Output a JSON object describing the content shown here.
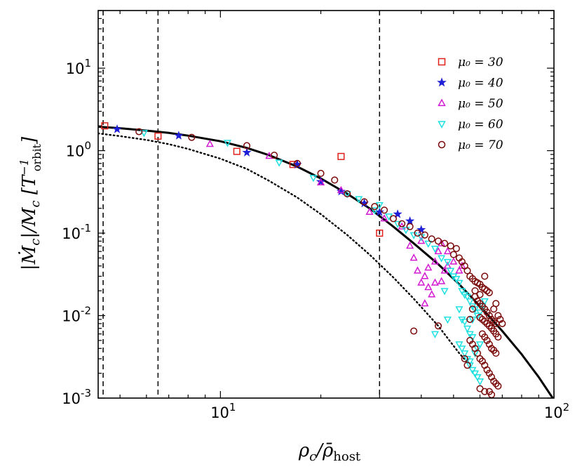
{
  "chart_data": {
    "type": "scatter",
    "x_scale": "log",
    "y_scale": "log",
    "xlim": [
      4.3,
      100
    ],
    "ylim": [
      0.001,
      50
    ],
    "xlabel": "ρ_c / ρ̄_host",
    "ylabel": "|Ṁ_c| / M_c [T⁻¹_orbit]",
    "x_ticks": [
      {
        "value": 10,
        "base": "10",
        "exp": "1"
      },
      {
        "value": 100,
        "base": "10",
        "exp": "2"
      }
    ],
    "y_ticks": [
      {
        "value": 0.001,
        "base": "10",
        "exp": "-3"
      },
      {
        "value": 0.01,
        "base": "10",
        "exp": "-2"
      },
      {
        "value": 0.1,
        "base": "10",
        "exp": "-1"
      },
      {
        "value": 1,
        "base": "10",
        "exp": "0"
      },
      {
        "value": 10,
        "base": "10",
        "exp": "1"
      }
    ],
    "grid": false,
    "legend_position": "top-right",
    "vertical_lines": [
      4.45,
      6.5,
      30
    ],
    "curves": [
      {
        "style": "solid",
        "x": [
          4.3,
          5,
          6,
          7,
          8,
          10,
          12,
          14,
          17,
          20,
          24,
          28,
          33,
          38,
          45,
          52,
          60,
          70,
          80,
          90,
          100
        ],
        "y": [
          1.95,
          1.87,
          1.75,
          1.64,
          1.52,
          1.3,
          1.08,
          0.88,
          0.64,
          0.46,
          0.3,
          0.2,
          0.12,
          0.075,
          0.042,
          0.024,
          0.013,
          0.0065,
          0.0034,
          0.0018,
          0.00095
        ]
      },
      {
        "style": "dotted",
        "x": [
          4.3,
          5,
          6,
          7,
          8,
          10,
          12,
          14,
          17,
          20,
          24,
          28,
          33,
          38,
          45,
          52,
          55
        ],
        "y": [
          1.62,
          1.5,
          1.35,
          1.2,
          1.05,
          0.8,
          0.6,
          0.43,
          0.27,
          0.17,
          0.095,
          0.055,
          0.029,
          0.016,
          0.0075,
          0.0035,
          0.0027
        ]
      }
    ],
    "series": [
      {
        "name": "μ₀ = 30",
        "marker": "square",
        "color": "#e0201a",
        "points": [
          [
            4.5,
            2.0
          ],
          [
            6.5,
            1.5
          ],
          [
            11.2,
            0.98
          ],
          [
            16.5,
            0.68
          ],
          [
            23,
            0.85
          ],
          [
            30,
            0.1
          ]
        ]
      },
      {
        "name": "μ₀ = 40",
        "marker": "star",
        "color": "#1f1fd6",
        "points": [
          [
            4.9,
            1.82
          ],
          [
            7.5,
            1.52
          ],
          [
            12,
            0.95
          ],
          [
            17,
            0.68
          ],
          [
            20,
            0.42
          ],
          [
            23,
            0.32
          ],
          [
            27,
            0.23
          ],
          [
            30,
            0.18
          ],
          [
            34,
            0.17
          ],
          [
            37,
            0.14
          ],
          [
            40,
            0.11
          ]
        ]
      },
      {
        "name": "μ₀ = 50",
        "marker": "triangle-up",
        "color": "#d21ad2",
        "points": [
          [
            9.3,
            1.2
          ],
          [
            14,
            0.86
          ],
          [
            20,
            0.41
          ],
          [
            23,
            0.33
          ],
          [
            28,
            0.18
          ],
          [
            31,
            0.15
          ],
          [
            35,
            0.12
          ],
          [
            37,
            0.07
          ],
          [
            38,
            0.05
          ],
          [
            39,
            0.035
          ],
          [
            40,
            0.025
          ],
          [
            41,
            0.03
          ],
          [
            42,
            0.022
          ],
          [
            43,
            0.018
          ],
          [
            41,
            0.014
          ],
          [
            44,
            0.025
          ],
          [
            46,
            0.026
          ],
          [
            47,
            0.035
          ],
          [
            48,
            0.04
          ],
          [
            50,
            0.045
          ],
          [
            45,
            0.06
          ],
          [
            46,
            0.075
          ],
          [
            48,
            0.06
          ],
          [
            52,
            0.035
          ],
          [
            53,
            0.04
          ],
          [
            42,
            0.038
          ],
          [
            44,
            0.045
          ],
          [
            40,
            0.08
          ]
        ]
      },
      {
        "name": "μ₀ = 60",
        "marker": "triangle-down",
        "color": "#1fe0e0",
        "points": [
          [
            5.9,
            1.65
          ],
          [
            10.5,
            1.25
          ],
          [
            15,
            0.72
          ],
          [
            19,
            0.47
          ],
          [
            24,
            0.3
          ],
          [
            26,
            0.26
          ],
          [
            29,
            0.19
          ],
          [
            30,
            0.22
          ],
          [
            32,
            0.16
          ],
          [
            34,
            0.13
          ],
          [
            36,
            0.11
          ],
          [
            38,
            0.095
          ],
          [
            40,
            0.09
          ],
          [
            42,
            0.075
          ],
          [
            44,
            0.065
          ],
          [
            46,
            0.05
          ],
          [
            48,
            0.045
          ],
          [
            49,
            0.035
          ],
          [
            50,
            0.03
          ],
          [
            51,
            0.028
          ],
          [
            52,
            0.025
          ],
          [
            53,
            0.02
          ],
          [
            54,
            0.018
          ],
          [
            55,
            0.017
          ],
          [
            56,
            0.015
          ],
          [
            57,
            0.013
          ],
          [
            58,
            0.012
          ],
          [
            52,
            0.012
          ],
          [
            53,
            0.009
          ],
          [
            54,
            0.0085
          ],
          [
            55,
            0.007
          ],
          [
            56,
            0.006
          ],
          [
            57,
            0.0055
          ],
          [
            52,
            0.0045
          ],
          [
            53,
            0.004
          ],
          [
            54,
            0.0035
          ],
          [
            55,
            0.003
          ],
          [
            56,
            0.0025
          ],
          [
            57,
            0.0022
          ],
          [
            58,
            0.002
          ],
          [
            59,
            0.0018
          ],
          [
            60,
            0.0016
          ],
          [
            56,
            0.0028
          ],
          [
            58,
            0.0035
          ],
          [
            59,
            0.004
          ],
          [
            60,
            0.0045
          ],
          [
            57,
            0.009
          ],
          [
            59,
            0.01
          ],
          [
            60,
            0.011
          ],
          [
            61,
            0.013
          ],
          [
            62,
            0.015
          ],
          [
            47,
            0.02
          ],
          [
            44,
            0.006
          ],
          [
            48,
            0.009
          ]
        ]
      },
      {
        "name": "μ₀ = 70",
        "marker": "circle",
        "color": "#7a0a0a",
        "points": [
          [
            5.7,
            1.7
          ],
          [
            8.2,
            1.45
          ],
          [
            12,
            1.15
          ],
          [
            14.5,
            0.88
          ],
          [
            17,
            0.7
          ],
          [
            20,
            0.53
          ],
          [
            22,
            0.44
          ],
          [
            24,
            0.3
          ],
          [
            27,
            0.24
          ],
          [
            29,
            0.21
          ],
          [
            31,
            0.19
          ],
          [
            33,
            0.15
          ],
          [
            35,
            0.13
          ],
          [
            37,
            0.12
          ],
          [
            39,
            0.1
          ],
          [
            41,
            0.095
          ],
          [
            43,
            0.085
          ],
          [
            45,
            0.08
          ],
          [
            47,
            0.075
          ],
          [
            49,
            0.07
          ],
          [
            51,
            0.065
          ],
          [
            50,
            0.055
          ],
          [
            52,
            0.05
          ],
          [
            53,
            0.045
          ],
          [
            54,
            0.04
          ],
          [
            55,
            0.035
          ],
          [
            56,
            0.03
          ],
          [
            57,
            0.028
          ],
          [
            58,
            0.026
          ],
          [
            59,
            0.025
          ],
          [
            60,
            0.024
          ],
          [
            61,
            0.022
          ],
          [
            62,
            0.021
          ],
          [
            63,
            0.02
          ],
          [
            64,
            0.019
          ],
          [
            58,
            0.017
          ],
          [
            59,
            0.015
          ],
          [
            60,
            0.014
          ],
          [
            61,
            0.013
          ],
          [
            62,
            0.012
          ],
          [
            63,
            0.011
          ],
          [
            64,
            0.01
          ],
          [
            65,
            0.009
          ],
          [
            66,
            0.0085
          ],
          [
            67,
            0.008
          ],
          [
            60,
            0.0095
          ],
          [
            61,
            0.009
          ],
          [
            62,
            0.0085
          ],
          [
            63,
            0.008
          ],
          [
            64,
            0.0075
          ],
          [
            65,
            0.007
          ],
          [
            66,
            0.0065
          ],
          [
            67,
            0.006
          ],
          [
            68,
            0.0055
          ],
          [
            61,
            0.006
          ],
          [
            62,
            0.0055
          ],
          [
            63,
            0.005
          ],
          [
            64,
            0.0045
          ],
          [
            65,
            0.004
          ],
          [
            66,
            0.0038
          ],
          [
            67,
            0.0035
          ],
          [
            56,
            0.005
          ],
          [
            57,
            0.0045
          ],
          [
            58,
            0.004
          ],
          [
            59,
            0.0035
          ],
          [
            60,
            0.003
          ],
          [
            61,
            0.0028
          ],
          [
            62,
            0.0025
          ],
          [
            63,
            0.0022
          ],
          [
            64,
            0.002
          ],
          [
            65,
            0.0018
          ],
          [
            66,
            0.0016
          ],
          [
            67,
            0.0015
          ],
          [
            68,
            0.0014
          ],
          [
            64,
            0.0012
          ],
          [
            65,
            0.0011
          ],
          [
            60,
            0.0013
          ],
          [
            62,
            0.0012
          ],
          [
            55,
            0.0025
          ],
          [
            54,
            0.003
          ],
          [
            38,
            0.0065
          ],
          [
            45,
            0.0075
          ],
          [
            56,
            0.009
          ],
          [
            57,
            0.012
          ],
          [
            58,
            0.02
          ],
          [
            62,
            0.03
          ],
          [
            60,
            0.018
          ],
          [
            66,
            0.012
          ],
          [
            68,
            0.01
          ],
          [
            69,
            0.009
          ],
          [
            70,
            0.008
          ],
          [
            67,
            0.014
          ]
        ]
      }
    ]
  }
}
